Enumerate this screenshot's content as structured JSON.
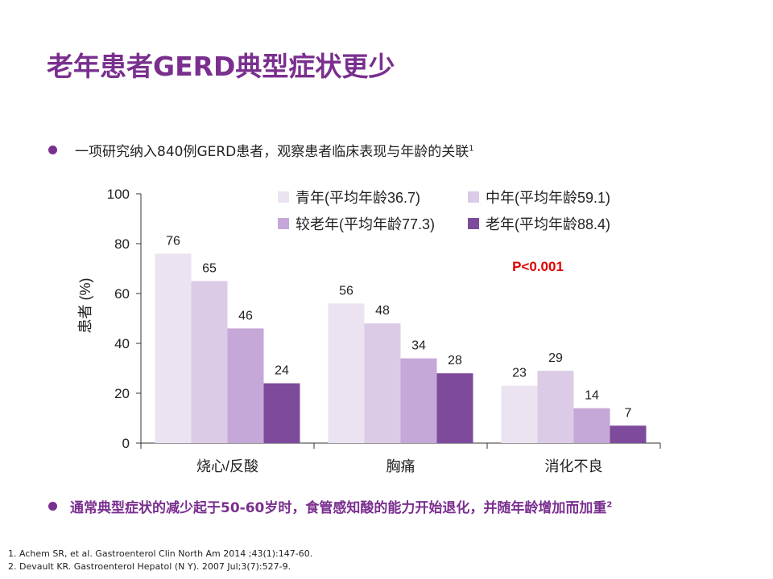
{
  "slide": {
    "title": "老年患者GERD典型症状更少",
    "bullet1": "一项研究纳入840例GERD患者，观察患者临床表现与年龄的关联",
    "bullet1_sup": "1",
    "bullet2": "通常典型症状的减少起于50-60岁时，食管感知酸的能力开始退化，并随年龄增加而加重",
    "bullet2_sup": "2",
    "bullet_color": "#7a2f8f",
    "references": [
      "1. Achem SR, et al. Gastroenterol Clin North Am 2014 ;43(1):147-60.",
      "2. Devault KR. Gastroenterol Hepatol (N Y). 2007 Jul;3(7):527-9."
    ]
  },
  "chart_data": {
    "type": "bar",
    "categories": [
      "烧心/反酸",
      "胸痛",
      "消化不良"
    ],
    "series": [
      {
        "name": "青年(平均年龄36.7)",
        "values": [
          76,
          56,
          23
        ],
        "color": "#ece3f1"
      },
      {
        "name": "中年(平均年龄59.1)",
        "values": [
          65,
          48,
          29
        ],
        "color": "#dccbe6"
      },
      {
        "name": "较老年(平均年龄77.3)",
        "values": [
          46,
          34,
          14
        ],
        "color": "#c5a8d7"
      },
      {
        "name": "老年(平均年龄88.4)",
        "values": [
          24,
          28,
          7
        ],
        "color": "#7e4b9c"
      }
    ],
    "ylabel": "患者 (%)",
    "ylim": [
      0,
      100
    ],
    "yticks": [
      0,
      20,
      40,
      60,
      80,
      100
    ],
    "annotation": "P<0.001",
    "annotation_color": "#e00000",
    "legend_position": "top-right",
    "grid": false
  }
}
